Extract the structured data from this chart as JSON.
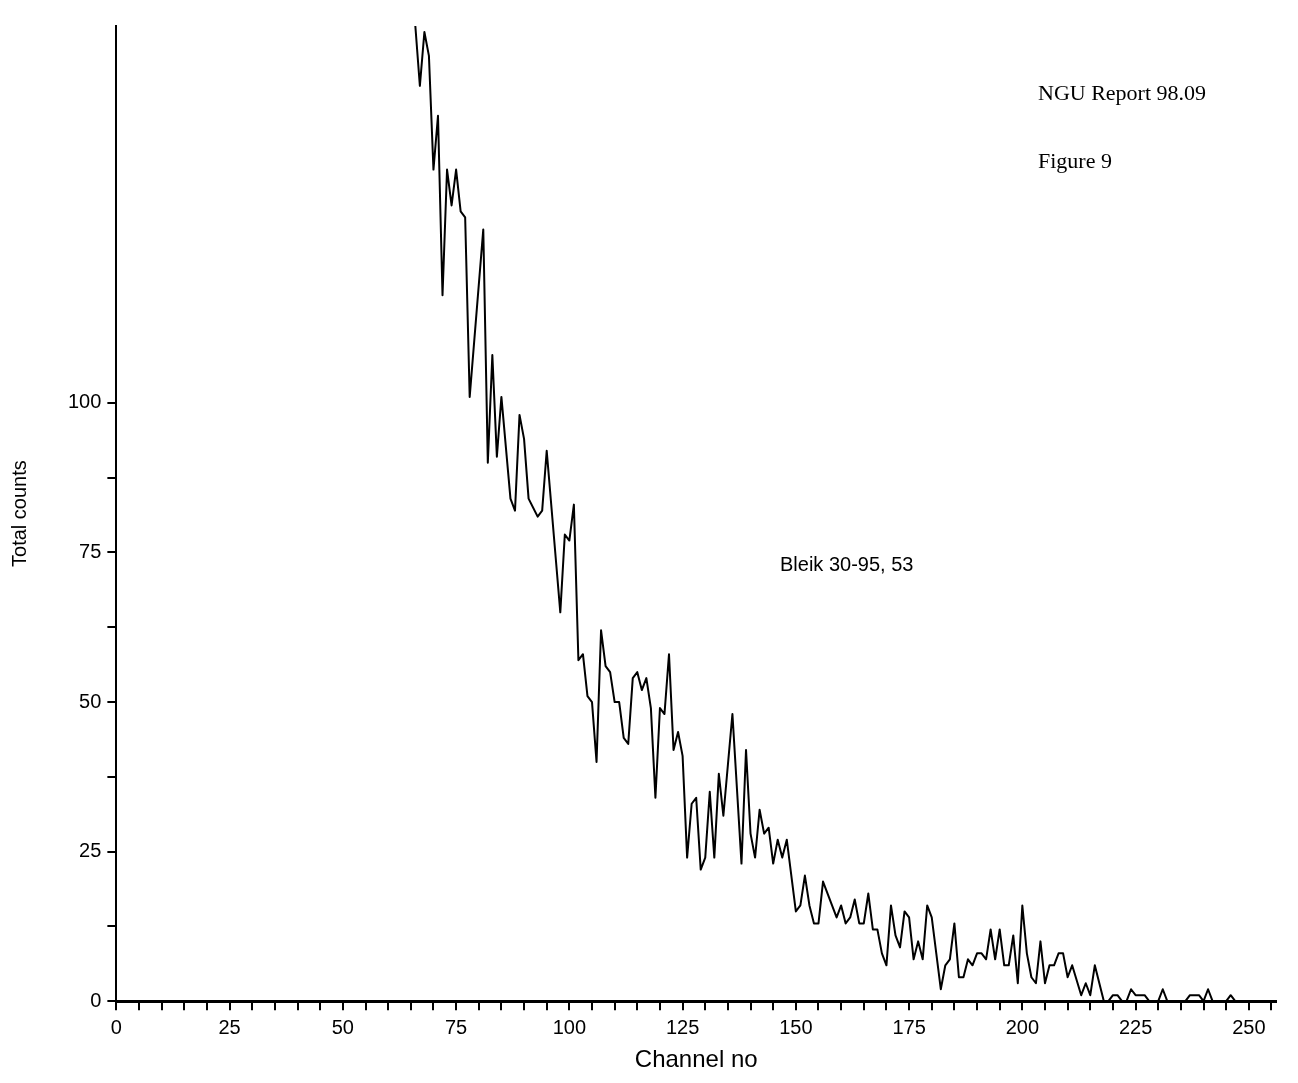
{
  "chart_data": {
    "type": "line",
    "xlabel": "Channel no",
    "ylabel": "Total counts",
    "annotations": [
      "Bleik 30-95, 53",
      "NGU Report 98.09",
      "Figure 9"
    ],
    "xlim": [
      0,
      256
    ],
    "ylim": [
      0,
      163
    ],
    "xticks": [
      0,
      {
        "value": 5,
        "label": null
      },
      {
        "value": 10,
        "label": null
      },
      {
        "value": 15,
        "label": null
      },
      {
        "value": 20,
        "label": null
      },
      25,
      {
        "value": 30,
        "label": null
      },
      {
        "value": 35,
        "label": null
      },
      {
        "value": 40,
        "label": null
      },
      {
        "value": 45,
        "label": null
      },
      50,
      {
        "value": 55,
        "label": null
      },
      {
        "value": 60,
        "label": null
      },
      {
        "value": 65,
        "label": null
      },
      {
        "value": 70,
        "label": null
      },
      75,
      {
        "value": 80,
        "label": null
      },
      {
        "value": 85,
        "label": null
      },
      {
        "value": 90,
        "label": null
      },
      {
        "value": 95,
        "label": null
      },
      100,
      {
        "value": 105,
        "label": null
      },
      {
        "value": 110,
        "label": null
      },
      {
        "value": 115,
        "label": null
      },
      {
        "value": 120,
        "label": null
      },
      125,
      {
        "value": 130,
        "label": null
      },
      {
        "value": 135,
        "label": null
      },
      {
        "value": 140,
        "label": null
      },
      {
        "value": 145,
        "label": null
      },
      150,
      {
        "value": 155,
        "label": null
      },
      {
        "value": 160,
        "label": null
      },
      {
        "value": 165,
        "label": null
      },
      {
        "value": 170,
        "label": null
      },
      175,
      {
        "value": 180,
        "label": null
      },
      {
        "value": 185,
        "label": null
      },
      {
        "value": 190,
        "label": null
      },
      {
        "value": 195,
        "label": null
      },
      200,
      {
        "value": 205,
        "label": null
      },
      {
        "value": 210,
        "label": null
      },
      {
        "value": 215,
        "label": null
      },
      {
        "value": 220,
        "label": null
      },
      225,
      {
        "value": 230,
        "label": null
      },
      {
        "value": 235,
        "label": null
      },
      {
        "value": 240,
        "label": null
      },
      {
        "value": 245,
        "label": null
      },
      250,
      {
        "value": 255,
        "label": null
      }
    ],
    "yticks": [
      0,
      {
        "value": 12.5,
        "label": null
      },
      25,
      {
        "value": 37.5,
        "label": null
      },
      50,
      {
        "value": 62.5,
        "label": null
      },
      75,
      {
        "value": 87.5,
        "label": null
      },
      100
    ],
    "grid": false,
    "legend": false,
    "series": [
      {
        "color": "#000000",
        "x": [
          66,
          67,
          68,
          69,
          70,
          71,
          72,
          73,
          74,
          75,
          76,
          77,
          78,
          81,
          82,
          83,
          84,
          85,
          87,
          88,
          89,
          90,
          91,
          93,
          94,
          95,
          97,
          98,
          99,
          100,
          101,
          102,
          103,
          104,
          105,
          106,
          107,
          108,
          109,
          110,
          111,
          112,
          113,
          114,
          115,
          116,
          117,
          118,
          119,
          120,
          121,
          122,
          123,
          124,
          125,
          126,
          127,
          128,
          129,
          130,
          131,
          132,
          133,
          134,
          136,
          138,
          139,
          140,
          141,
          142,
          143,
          144,
          145,
          146,
          147,
          148,
          150,
          151,
          152,
          153,
          154,
          155,
          156,
          159,
          160,
          161,
          162,
          163,
          164,
          165,
          166,
          167,
          168,
          169,
          170,
          171,
          172,
          173,
          174,
          175,
          176,
          177,
          178,
          179,
          180,
          182,
          183,
          184,
          185,
          186,
          187,
          188,
          189,
          190,
          191,
          192,
          193,
          194,
          195,
          196,
          197,
          198,
          199,
          200,
          201,
          202,
          203,
          204,
          205,
          206,
          207,
          208,
          209,
          210,
          211,
          213,
          214,
          215,
          216,
          218,
          219,
          220,
          221,
          222,
          223,
          224,
          225,
          227,
          228,
          230,
          231,
          232,
          236,
          237,
          239,
          240,
          241,
          242,
          245,
          246,
          247
        ],
        "values": [
          163,
          153,
          162,
          158,
          139,
          148,
          118,
          139,
          133,
          139,
          132,
          131,
          101,
          129,
          90,
          108,
          91,
          101,
          84,
          82,
          98,
          94,
          84,
          81,
          82,
          92,
          74,
          65,
          78,
          77,
          83,
          57,
          58,
          51,
          50,
          40,
          62,
          56,
          55,
          50,
          50,
          44,
          43,
          54,
          55,
          52,
          54,
          49,
          34,
          49,
          48,
          58,
          42,
          45,
          41,
          24,
          33,
          34,
          22,
          24,
          35,
          24,
          38,
          31,
          48,
          23,
          42,
          28,
          24,
          32,
          28,
          29,
          23,
          27,
          24,
          27,
          15,
          16,
          21,
          16,
          13,
          13,
          20,
          14,
          16,
          13,
          14,
          17,
          13,
          13,
          18,
          12,
          12,
          8,
          6,
          16,
          11,
          9,
          15,
          14,
          7,
          10,
          7,
          16,
          14,
          2,
          6,
          7,
          13,
          4,
          4,
          7,
          6,
          8,
          8,
          7,
          12,
          7,
          12,
          6,
          6,
          11,
          3,
          16,
          8,
          4,
          3,
          10,
          3,
          6,
          6,
          8,
          8,
          4,
          6,
          1,
          3,
          1,
          6,
          0,
          0,
          1,
          1,
          0,
          0,
          2,
          1,
          1,
          0,
          0,
          2,
          0,
          0,
          1,
          1,
          0,
          2,
          0,
          0,
          1,
          0
        ]
      }
    ]
  }
}
